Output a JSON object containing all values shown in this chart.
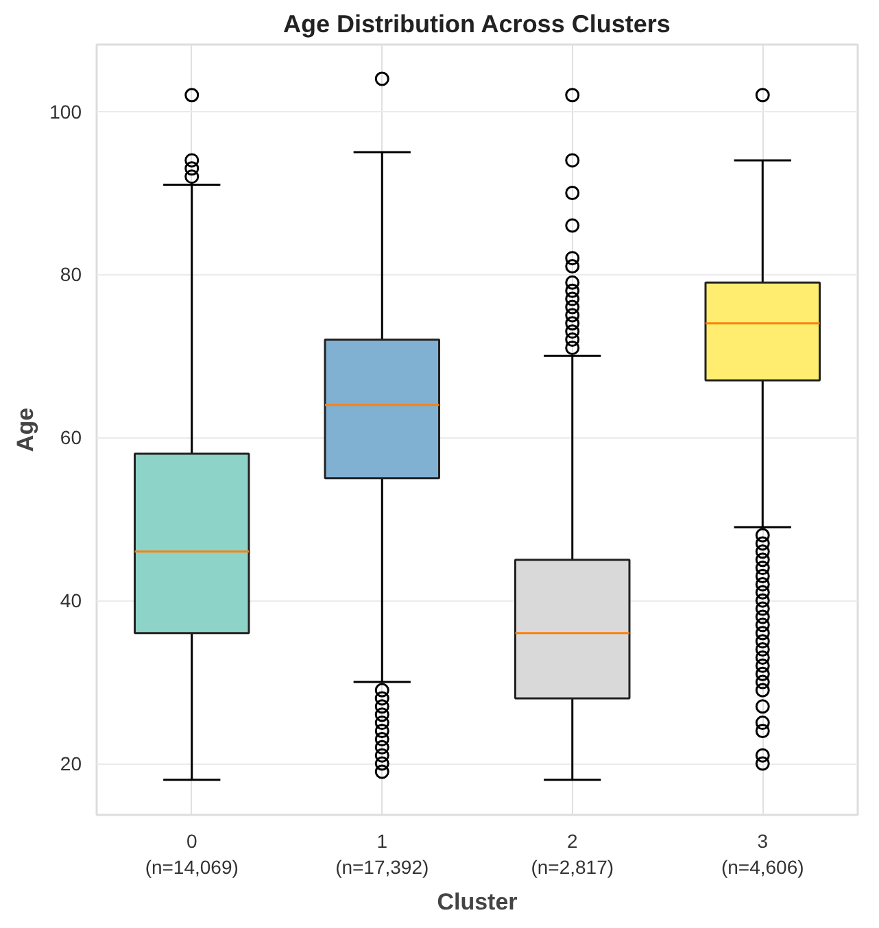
{
  "chart_data": {
    "type": "box",
    "title": "Age Distribution Across Clusters",
    "xlabel": "Cluster",
    "ylabel": "Age",
    "categories": [
      "0\n(n=14,069)",
      "1\n(n=17,392)",
      "2\n(n=2,817)",
      "3\n(n=4,606)"
    ],
    "colors": [
      "#8dd3c7",
      "#80b1d3",
      "#d9d9d9",
      "#ffed6f"
    ],
    "boxes": [
      {
        "low": 18,
        "q1": 36,
        "median": 46,
        "q3": 58,
        "high": 91,
        "outliers": [
          92,
          93,
          94,
          102
        ]
      },
      {
        "low": 30,
        "q1": 55,
        "median": 64,
        "q3": 72,
        "high": 95,
        "outliers": [
          19,
          20,
          21,
          22,
          23,
          24,
          25,
          26,
          27,
          28,
          29,
          104
        ]
      },
      {
        "low": 18,
        "q1": 28,
        "median": 36,
        "q3": 45,
        "high": 70,
        "outliers": [
          71,
          72,
          73,
          74,
          75,
          76,
          77,
          78,
          79,
          81,
          82,
          86,
          90,
          94,
          102
        ]
      },
      {
        "low": 49,
        "q1": 67,
        "median": 74,
        "q3": 79,
        "high": 94,
        "outliers": [
          20,
          21,
          24,
          25,
          27,
          29,
          30,
          31,
          32,
          33,
          34,
          35,
          36,
          37,
          38,
          39,
          40,
          41,
          42,
          43,
          44,
          45,
          46,
          47,
          48,
          102
        ]
      }
    ],
    "ylim": [
      13.7,
      108.2
    ],
    "yticks": [
      20,
      40,
      60,
      80,
      100
    ],
    "grid": true
  }
}
